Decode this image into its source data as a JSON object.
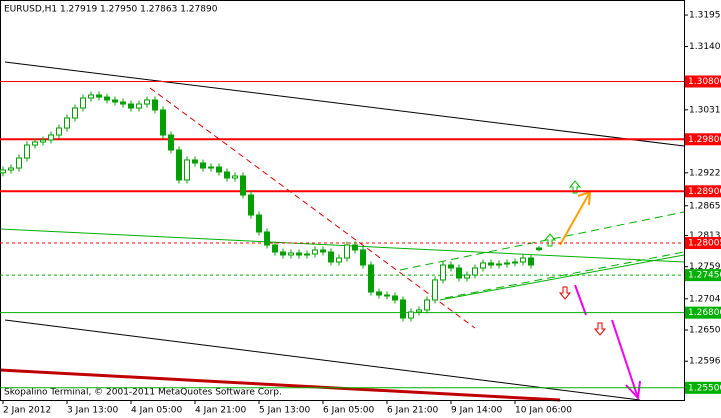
{
  "chart_data": {
    "type": "candlestick",
    "title": "EURUSD,H1  1.27919 1.27950 1.27863 1.27890",
    "footer": "Skopalino Terminal, © 2001-2011 MetaQuotes Software Corp.",
    "candle_up_color": "#ffffff",
    "candle_down_color": "#00a000",
    "candle_line_color": "#00a000",
    "open": [
      1.2922,
      1.29269,
      1.29303,
      1.29476,
      1.29701,
      1.29753,
      1.29788,
      1.29874,
      1.29995,
      1.30168,
      1.30341,
      1.30514,
      1.30566,
      1.30531,
      1.3048,
      1.30445,
      1.3041,
      1.30341,
      1.3041,
      1.3048,
      1.30307,
      1.29874,
      1.29615,
      1.29096,
      1.29442,
      1.2939,
      1.29303,
      1.2932,
      1.29234,
      1.2913,
      1.29165,
      1.28836,
      1.2849,
      1.28196,
      1.27971,
      1.2785,
      1.27798,
      1.27833,
      1.27798,
      1.27815,
      1.27885,
      1.2785,
      1.27677,
      1.27746,
      1.27971,
      1.27885,
      1.27625,
      1.27158,
      1.27106,
      1.27089,
      1.2702,
      1.26708,
      1.26812,
      1.26847,
      1.2702,
      1.27366,
      1.27625,
      1.27573,
      1.274,
      1.27452,
      1.27573,
      1.2766,
      1.27625,
      1.27642,
      1.2766,
      1.27677,
      1.27746,
      1.27919
    ],
    "high": [
      1.29329,
      1.29363,
      1.29536,
      1.29761,
      1.29813,
      1.29848,
      1.29934,
      1.30055,
      1.30228,
      1.30401,
      1.30574,
      1.30626,
      1.30626,
      1.30591,
      1.3054,
      1.30505,
      1.3047,
      1.3047,
      1.3054,
      1.3054,
      1.30367,
      1.29934,
      1.29675,
      1.29502,
      1.29502,
      1.2945,
      1.2938,
      1.2938,
      1.29294,
      1.29225,
      1.29225,
      1.28896,
      1.2855,
      1.28256,
      1.28031,
      1.2791,
      1.27893,
      1.27893,
      1.27875,
      1.27945,
      1.27945,
      1.2791,
      1.27806,
      1.28031,
      1.28031,
      1.27945,
      1.27685,
      1.27218,
      1.27166,
      1.27149,
      1.2708,
      1.26872,
      1.26907,
      1.2708,
      1.27426,
      1.27685,
      1.27685,
      1.27633,
      1.27512,
      1.27633,
      1.2772,
      1.2772,
      1.27702,
      1.2772,
      1.27737,
      1.27806,
      1.27806,
      1.2795
    ],
    "low": [
      1.2916,
      1.29209,
      1.29243,
      1.29416,
      1.29641,
      1.29693,
      1.29728,
      1.29814,
      1.29935,
      1.30108,
      1.30281,
      1.30454,
      1.30471,
      1.3042,
      1.30385,
      1.3035,
      1.30281,
      1.30281,
      1.3035,
      1.30247,
      1.29814,
      1.29555,
      1.29036,
      1.29036,
      1.2933,
      1.29243,
      1.29243,
      1.29174,
      1.2907,
      1.2907,
      1.28776,
      1.2843,
      1.28136,
      1.27911,
      1.2779,
      1.27738,
      1.27738,
      1.27738,
      1.27738,
      1.27755,
      1.2779,
      1.27617,
      1.27617,
      1.27686,
      1.27825,
      1.27565,
      1.27098,
      1.27046,
      1.27029,
      1.2696,
      1.26648,
      1.26648,
      1.26752,
      1.26787,
      1.2696,
      1.27306,
      1.27513,
      1.2734,
      1.2734,
      1.27392,
      1.27513,
      1.27565,
      1.27565,
      1.27582,
      1.276,
      1.27617,
      1.27565,
      1.27863
    ],
    "close": [
      1.29269,
      1.29303,
      1.29476,
      1.29701,
      1.29753,
      1.29788,
      1.29874,
      1.29995,
      1.30168,
      1.30341,
      1.30514,
      1.30566,
      1.30531,
      1.3048,
      1.30445,
      1.3041,
      1.30341,
      1.3041,
      1.3048,
      1.30307,
      1.29874,
      1.29615,
      1.29096,
      1.29442,
      1.2939,
      1.29303,
      1.2932,
      1.29234,
      1.2913,
      1.29165,
      1.28836,
      1.2849,
      1.28196,
      1.27971,
      1.2785,
      1.27798,
      1.27833,
      1.27798,
      1.27815,
      1.27885,
      1.2785,
      1.27677,
      1.27746,
      1.27971,
      1.27885,
      1.27625,
      1.27158,
      1.27106,
      1.27089,
      1.2702,
      1.26708,
      1.26812,
      1.26847,
      1.2702,
      1.27366,
      1.27625,
      1.27573,
      1.274,
      1.27452,
      1.27573,
      1.2766,
      1.27625,
      1.27642,
      1.2766,
      1.27677,
      1.27746,
      1.27625,
      1.2789
    ],
    "xticks": [
      {
        "value": 0,
        "label": "2 Jan 2012"
      },
      {
        "value": 8,
        "label": "3 Jan 13:00"
      },
      {
        "value": 16,
        "label": "4 Jan 05:00"
      },
      {
        "value": 24,
        "label": "4 Jan 21:00"
      },
      {
        "value": 32,
        "label": "5 Jan 13:00"
      },
      {
        "value": 40,
        "label": "6 Jan 05:00"
      },
      {
        "value": 48,
        "label": "6 Jan 21:00"
      },
      {
        "value": 56,
        "label": "9 Jan 14:00"
      },
      {
        "value": 64,
        "label": "10 Jan 06:00"
      }
    ],
    "ylim": [
      1.25289,
      1.3221
    ],
    "yticks": [
      {
        "value": 1.3195,
        "label": "1.31950"
      },
      {
        "value": 1.31405,
        "label": "1.31405"
      },
      {
        "value": 1.3031,
        "label": "1.30310"
      },
      {
        "value": 1.2922,
        "label": "1.29220"
      },
      {
        "value": 1.2865,
        "label": "1.28650"
      },
      {
        "value": 1.28135,
        "label": "1.28135"
      },
      {
        "value": 1.27595,
        "label": "1.27595"
      },
      {
        "value": 1.2704,
        "label": "1.27040"
      },
      {
        "value": 1.265,
        "label": "1.26500"
      },
      {
        "value": 1.2596,
        "label": "1.25960"
      }
    ],
    "levels": [
      {
        "value": 1.308,
        "label": "1.30800",
        "color": "#ff0000",
        "style": "solid"
      },
      {
        "value": 1.298,
        "label": "1.29800",
        "color": "#ff0000",
        "style": "thick"
      },
      {
        "value": 1.289,
        "label": "1.28900",
        "color": "#ff0000",
        "style": "thick"
      },
      {
        "value": 1.28005,
        "label": "1.28005",
        "color": "#ff0000",
        "style": "dashed"
      },
      {
        "value": 1.2745,
        "label": "1.27450",
        "color": "#00b000",
        "style": "dashed"
      },
      {
        "value": 1.268,
        "label": "1.26800",
        "color": "#00b000",
        "style": "solid"
      },
      {
        "value": 1.255,
        "label": "1.25500",
        "color": "#00b000",
        "style": "solid"
      }
    ]
  }
}
